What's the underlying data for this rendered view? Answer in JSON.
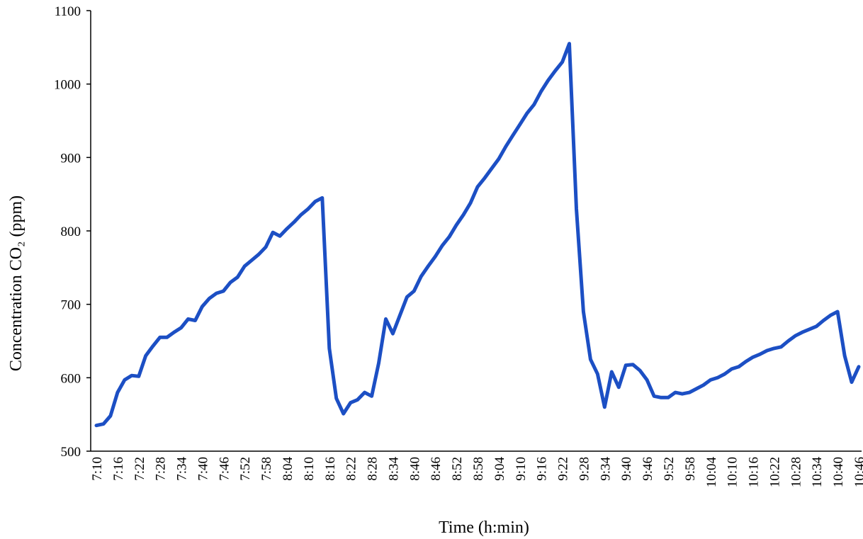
{
  "chart_data": {
    "type": "line",
    "xlabel": "Time (h:min)",
    "ylabel": "Concentration CO₂  (ppm)",
    "categories": [
      "7:10",
      null,
      null,
      "7:16",
      null,
      null,
      "7:22",
      null,
      null,
      "7:28",
      null,
      null,
      "7:34",
      null,
      null,
      "7:40",
      null,
      null,
      "7:46",
      null,
      null,
      "7:52",
      null,
      null,
      "7:58",
      null,
      null,
      "8:04",
      null,
      null,
      "8:10",
      null,
      null,
      "8:16",
      null,
      null,
      "8:22",
      null,
      null,
      "8:28",
      null,
      null,
      "8:34",
      null,
      null,
      "8:40",
      null,
      null,
      "8:46",
      null,
      null,
      "8:52",
      null,
      null,
      "8:58",
      null,
      null,
      "9:04",
      null,
      null,
      "9:10",
      null,
      null,
      "9:16",
      null,
      null,
      "9:22",
      null,
      null,
      "9:28",
      null,
      null,
      "9:34",
      null,
      null,
      "9:40",
      null,
      null,
      "9:46",
      null,
      null,
      "9:52",
      null,
      null,
      "9:58",
      null,
      null,
      "10:04",
      null,
      null,
      "10:10",
      null,
      null,
      "10:16",
      null,
      null,
      "10:22",
      null,
      null,
      "10:28",
      null,
      null,
      "10:34",
      null,
      null,
      "10:40",
      null,
      null,
      "10:46"
    ],
    "series": [
      {
        "color": "#1c4fc4",
        "values": [
          535,
          537,
          548,
          580,
          597,
          603,
          602,
          630,
          643,
          655,
          655,
          662,
          668,
          680,
          678,
          697,
          708,
          715,
          718,
          730,
          737,
          752,
          760,
          768,
          778,
          798,
          793,
          803,
          812,
          822,
          830,
          840,
          845,
          640,
          572,
          551,
          566,
          570,
          580,
          575,
          620,
          680,
          660,
          685,
          710,
          718,
          738,
          752,
          765,
          780,
          792,
          808,
          822,
          838,
          860,
          872,
          885,
          898,
          915,
          930,
          945,
          960,
          972,
          990,
          1005,
          1018,
          1030,
          1055,
          830,
          690,
          625,
          605,
          560,
          608,
          587,
          617,
          618,
          610,
          597,
          575,
          573,
          573,
          580,
          578,
          580,
          585,
          590,
          597,
          600,
          605,
          612,
          615,
          622,
          628,
          632,
          637,
          640,
          642,
          650,
          657,
          662,
          666,
          670,
          678,
          685,
          690,
          630,
          594,
          615
        ]
      }
    ],
    "ylim": [
      500,
      1100
    ],
    "yticks": [
      500,
      600,
      700,
      800,
      900,
      1000,
      1100
    ],
    "grid": false
  }
}
